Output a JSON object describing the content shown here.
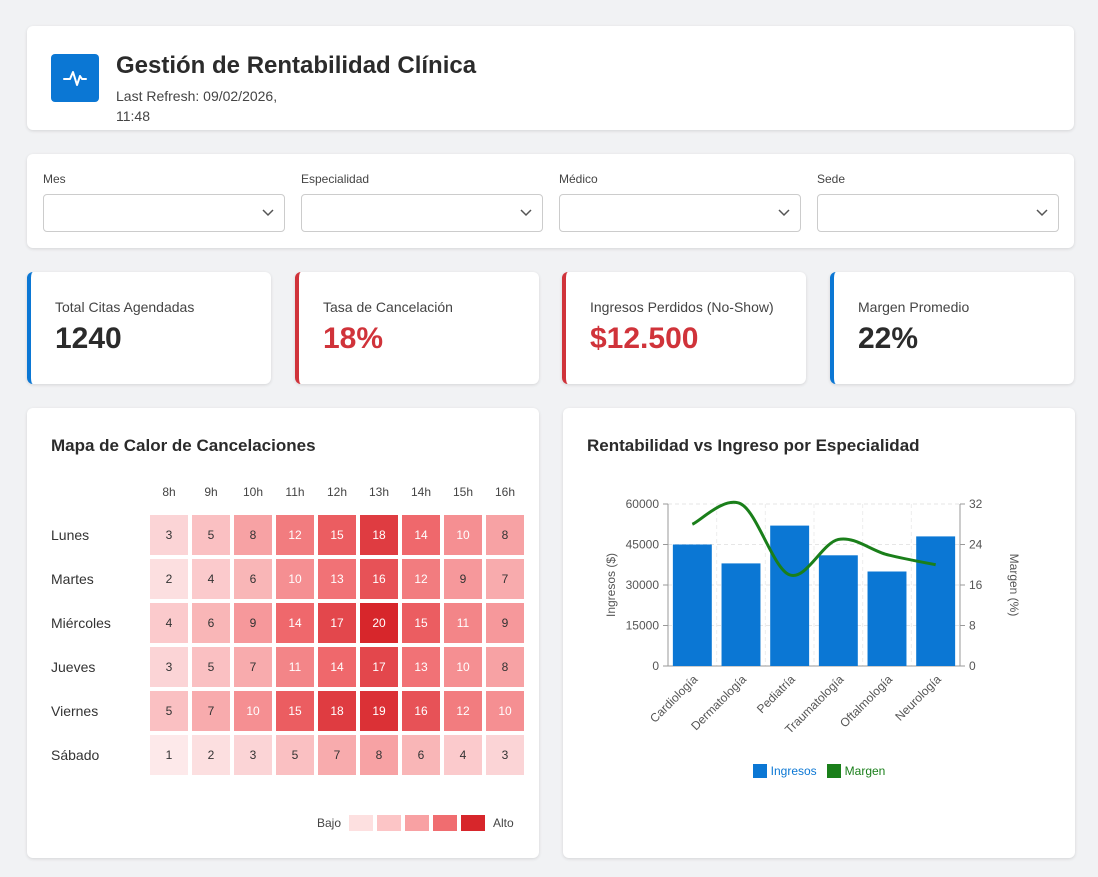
{
  "header": {
    "title": "Gestión de Rentabilidad Clínica",
    "refresh": "Last Refresh: 09/02/2026, 11:48"
  },
  "filters": [
    {
      "label": "Mes",
      "value": ""
    },
    {
      "label": "Especialidad",
      "value": ""
    },
    {
      "label": "Médico",
      "value": ""
    },
    {
      "label": "Sede",
      "value": ""
    }
  ],
  "kpis": [
    {
      "label": "Total Citas Agendadas",
      "value": "1240",
      "accent": "#0b77d4"
    },
    {
      "label": "Tasa de Cancelación",
      "value": "18%",
      "accent": "#d0333a"
    },
    {
      "label": "Ingresos Perdidos (No-Show)",
      "value": "$12.500",
      "accent": "#d0333a"
    },
    {
      "label": "Margen Promedio",
      "value": "22%",
      "accent": "#0b77d4"
    }
  ],
  "heatmap": {
    "title": "Mapa de Calor de Cancelaciones",
    "hours": [
      "8h",
      "9h",
      "10h",
      "11h",
      "12h",
      "13h",
      "14h",
      "15h",
      "16h"
    ],
    "days": [
      "Lunes",
      "Martes",
      "Miércoles",
      "Jueves",
      "Viernes",
      "Sábado"
    ],
    "values": [
      [
        3,
        5,
        8,
        12,
        15,
        18,
        14,
        10,
        8
      ],
      [
        2,
        4,
        6,
        10,
        13,
        16,
        12,
        9,
        7
      ],
      [
        4,
        6,
        9,
        14,
        17,
        20,
        15,
        11,
        9
      ],
      [
        3,
        5,
        7,
        11,
        14,
        17,
        13,
        10,
        8
      ],
      [
        5,
        7,
        10,
        15,
        18,
        19,
        16,
        12,
        10
      ],
      [
        1,
        2,
        3,
        5,
        7,
        8,
        6,
        4,
        3
      ]
    ],
    "legend_low": "Bajo",
    "legend_high": "Alto",
    "scale_colors": [
      "#fde0e0",
      "#fcc5c6",
      "#f8a1a3",
      "#f06d70",
      "#d7262b"
    ]
  },
  "chart": {
    "title": "Rentabilidad vs Ingreso por Especialidad",
    "legend_ingresos": "Ingresos",
    "legend_margen": "Margen",
    "ingresos_color": "#0b77d4",
    "margen_color": "#1a7f1a"
  },
  "chart_data": {
    "type": "bar",
    "categories": [
      "Cardiología",
      "Dermatología",
      "Pediatría",
      "Traumatología",
      "Oftalmología",
      "Neurología"
    ],
    "series": [
      {
        "name": "Ingresos",
        "type": "bar",
        "axis": "left",
        "values": [
          45000,
          38000,
          52000,
          41000,
          35000,
          48000
        ]
      },
      {
        "name": "Margen",
        "type": "line",
        "axis": "right",
        "values": [
          28,
          32,
          18,
          25,
          22,
          20
        ]
      }
    ],
    "ylabel": "Ingresos ($)",
    "y2label": "Margen (%)",
    "ylim": [
      0,
      60000
    ],
    "y2lim": [
      0,
      32
    ],
    "yticks": [
      "0",
      "15000",
      "30000",
      "45000",
      "60000"
    ],
    "y2ticks": [
      "0",
      "8",
      "16",
      "24",
      "32"
    ],
    "grid": true,
    "legend": "bottom"
  }
}
